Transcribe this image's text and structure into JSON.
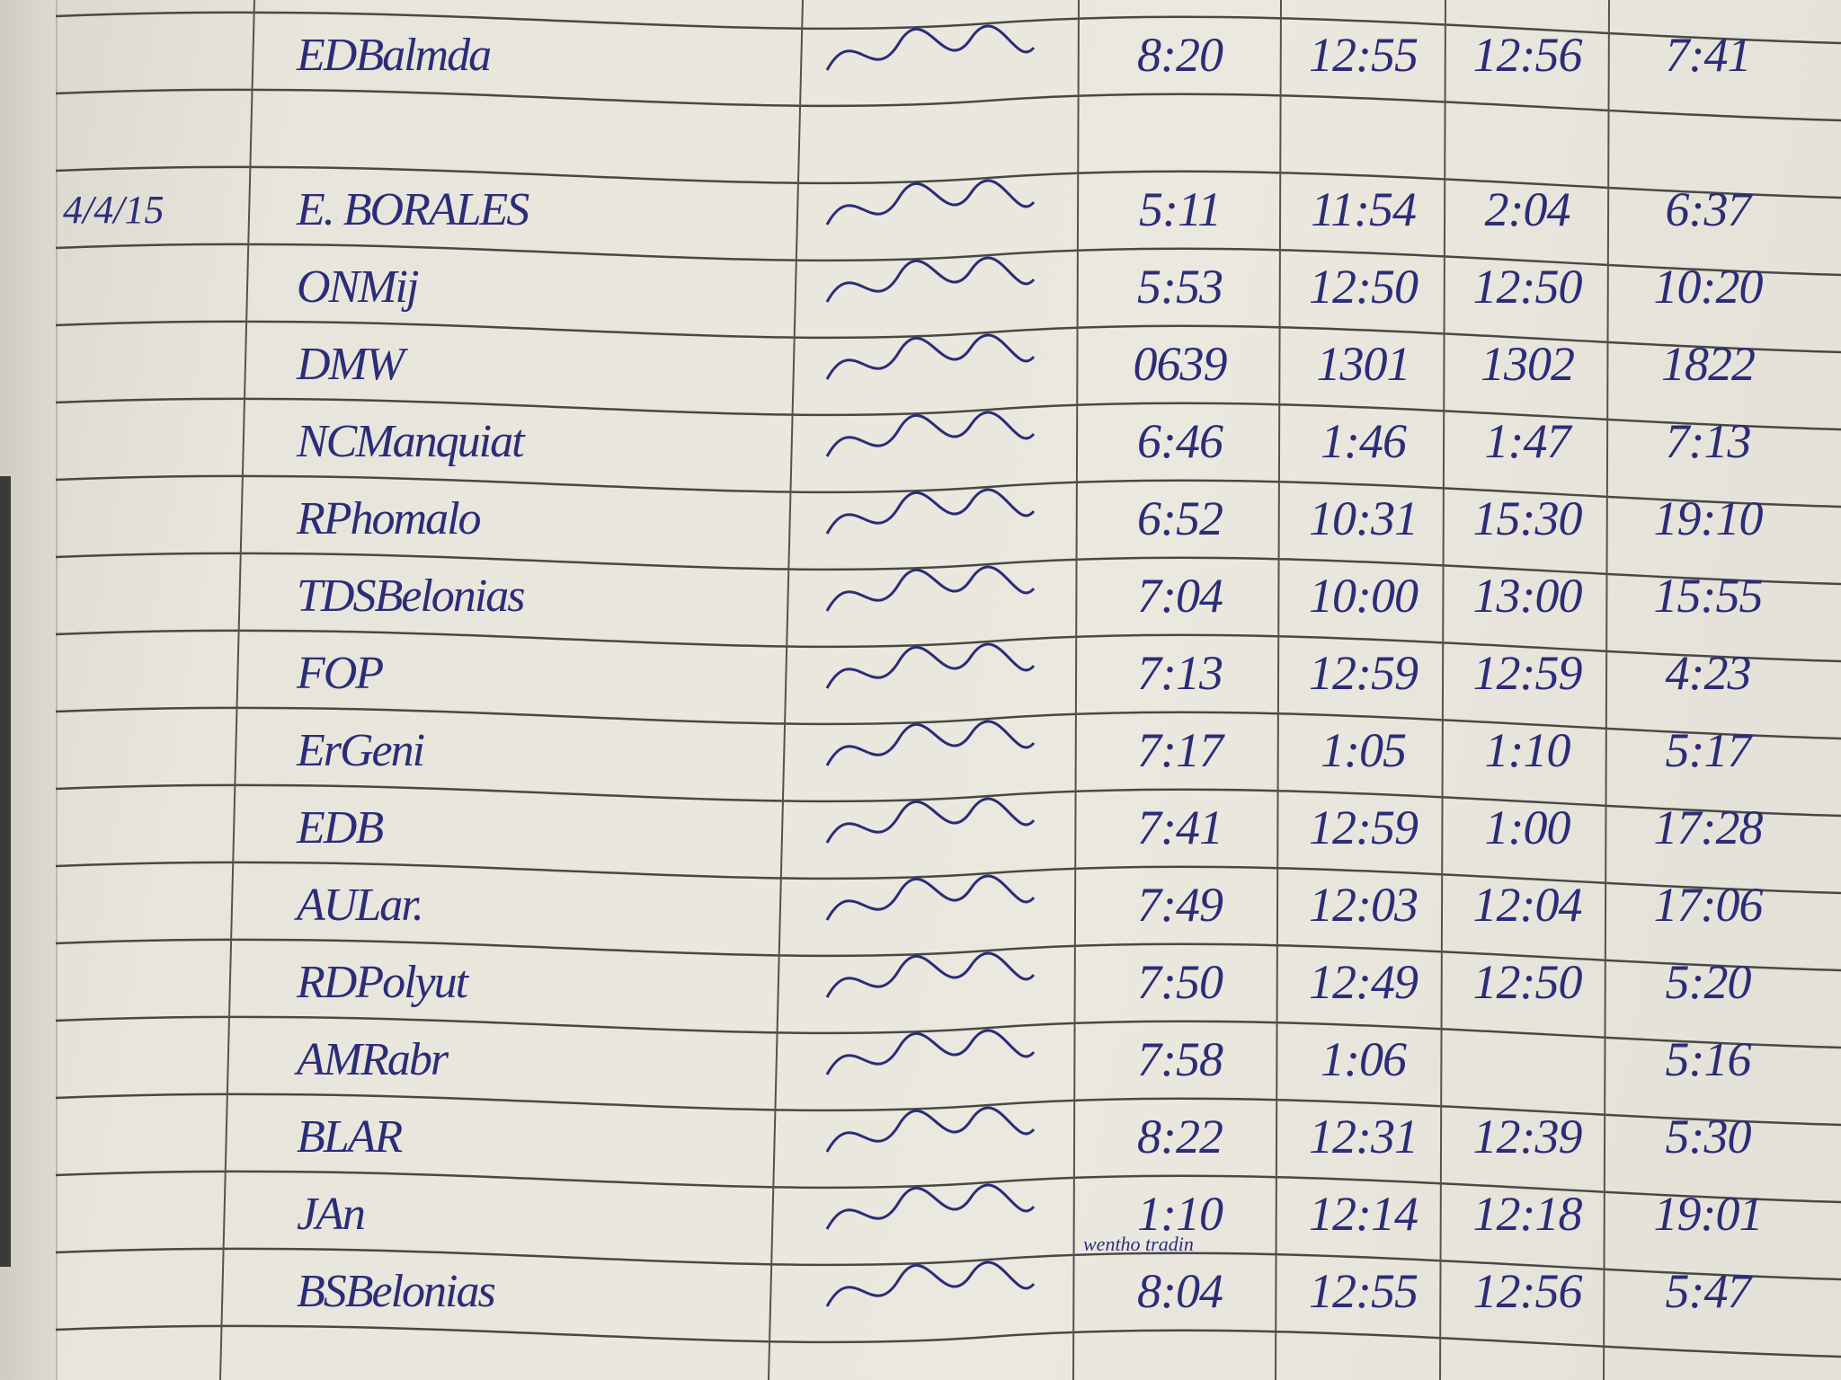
{
  "logbook": {
    "ink_color": "#2b2d78",
    "paper_color": "#e8e5dc",
    "rows": [
      {
        "date": "",
        "name": "EDBalmda",
        "times": [
          "8:20",
          "12:55",
          "12:56",
          "7:41"
        ]
      },
      {
        "date": "",
        "name": "",
        "times": [
          "",
          "",
          "",
          ""
        ]
      },
      {
        "date": "4/4/15",
        "name": "E. BORALES",
        "times": [
          "5:11",
          "11:54",
          "2:04",
          "6:37"
        ]
      },
      {
        "date": "",
        "name": "ONMij",
        "times": [
          "5:53",
          "12:50",
          "12:50",
          "10:20"
        ]
      },
      {
        "date": "",
        "name": "DMW",
        "times": [
          "0639",
          "1301",
          "1302",
          "1822"
        ]
      },
      {
        "date": "",
        "name": "NCManquiat",
        "times": [
          "6:46",
          "1:46",
          "1:47",
          "7:13"
        ]
      },
      {
        "date": "",
        "name": "RPhomalo",
        "times": [
          "6:52",
          "10:31",
          "15:30",
          "19:10"
        ]
      },
      {
        "date": "",
        "name": "TDSBelonias",
        "times": [
          "7:04",
          "10:00",
          "13:00",
          "15:55"
        ]
      },
      {
        "date": "",
        "name": "FOP",
        "times": [
          "7:13",
          "12:59",
          "12:59",
          "4:23"
        ]
      },
      {
        "date": "",
        "name": "ErGeni",
        "times": [
          "7:17",
          "1:05",
          "1:10",
          "5:17"
        ]
      },
      {
        "date": "",
        "name": "EDB",
        "times": [
          "7:41",
          "12:59",
          "1:00",
          "17:28"
        ]
      },
      {
        "date": "",
        "name": "AULar.",
        "times": [
          "7:49",
          "12:03",
          "12:04",
          "17:06"
        ]
      },
      {
        "date": "",
        "name": "RDPolyut",
        "times": [
          "7:50",
          "12:49",
          "12:50",
          "5:20"
        ]
      },
      {
        "date": "",
        "name": "AMRabr",
        "times": [
          "7:58",
          "1:06",
          "",
          "5:16"
        ]
      },
      {
        "date": "",
        "name": "BLAR",
        "times": [
          "8:22",
          "12:31",
          "12:39",
          "5:30"
        ]
      },
      {
        "date": "",
        "name": "JAn",
        "times": [
          "1:10",
          "12:14",
          "12:18",
          "19:01"
        ],
        "note": "wentho tradin"
      },
      {
        "date": "",
        "name": "BSBelonias",
        "times": [
          "8:04",
          "12:55",
          "12:56",
          "5:47"
        ]
      }
    ]
  }
}
